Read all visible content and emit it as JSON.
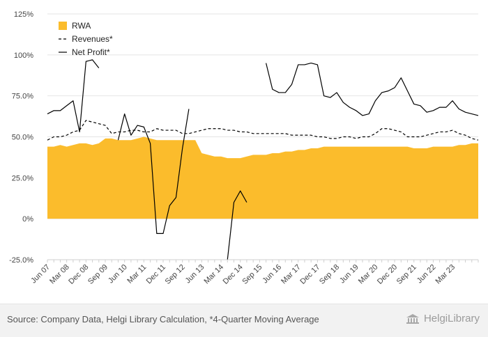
{
  "chart_data": {
    "type": "area",
    "title": "",
    "xlabel": "",
    "ylabel": "",
    "ylim": [
      -0.25,
      1.25
    ],
    "yticks": [
      -0.25,
      0,
      0.25,
      0.5,
      0.75,
      1.0,
      1.25
    ],
    "ytick_labels": [
      "-25.0%",
      "0%",
      "25.0%",
      "50.0%",
      "75.0%",
      "100%",
      "125%"
    ],
    "x_start": "Jun 07",
    "x_end": "Dec 23",
    "xtick_labels": [
      "Jun 07",
      "Mar 08",
      "Dec 08",
      "Sep 09",
      "Jun 10",
      "Mar 11",
      "Dec 11",
      "Sep 12",
      "Jun 13",
      "Mar 14",
      "Dec 14",
      "Sep 15",
      "Jun 16",
      "Mar 17",
      "Dec 17",
      "Sep 18",
      "Jun 19",
      "Mar 20",
      "Dec 20",
      "Sep 21",
      "Jun 22",
      "Mar 23"
    ],
    "grid": true,
    "legend_position": "top-left",
    "series": [
      {
        "name": "RWA",
        "style": "area",
        "color": "#fbbc2c",
        "values": [
          0.44,
          0.44,
          0.45,
          0.44,
          0.45,
          0.46,
          0.46,
          0.45,
          0.46,
          0.49,
          0.49,
          0.48,
          0.48,
          0.48,
          0.49,
          0.5,
          0.49,
          0.48,
          0.48,
          0.48,
          0.48,
          0.48,
          0.48,
          0.48,
          0.4,
          0.39,
          0.38,
          0.38,
          0.37,
          0.37,
          0.37,
          0.38,
          0.39,
          0.39,
          0.39,
          0.4,
          0.4,
          0.41,
          0.41,
          0.42,
          0.42,
          0.43,
          0.43,
          0.44,
          0.44,
          0.44,
          0.44,
          0.44,
          0.44,
          0.44,
          0.44,
          0.44,
          0.44,
          0.44,
          0.44,
          0.44,
          0.44,
          0.43,
          0.43,
          0.43,
          0.44,
          0.44,
          0.44,
          0.44,
          0.45,
          0.45,
          0.46,
          0.46
        ]
      },
      {
        "name": "Revenues*",
        "style": "dashed",
        "color": "#000000",
        "values": [
          0.48,
          0.5,
          0.5,
          0.51,
          0.53,
          0.54,
          0.6,
          0.59,
          0.58,
          0.57,
          0.52,
          0.53,
          0.53,
          0.54,
          0.54,
          0.53,
          0.53,
          0.55,
          0.54,
          0.54,
          0.54,
          0.52,
          0.52,
          0.53,
          0.54,
          0.55,
          0.55,
          0.55,
          0.54,
          0.54,
          0.53,
          0.53,
          0.52,
          0.52,
          0.52,
          0.52,
          0.52,
          0.52,
          0.51,
          0.51,
          0.51,
          0.51,
          0.5,
          0.5,
          0.49,
          0.49,
          0.5,
          0.5,
          0.49,
          0.5,
          0.5,
          0.52,
          0.55,
          0.55,
          0.54,
          0.53,
          0.5,
          0.5,
          0.5,
          0.51,
          0.52,
          0.53,
          0.53,
          0.54,
          0.52,
          0.51,
          0.49,
          0.48
        ]
      },
      {
        "name": "Net Profit*",
        "style": "solid",
        "color": "#000000",
        "values": [
          0.64,
          0.66,
          0.66,
          0.69,
          0.72,
          0.53,
          0.96,
          0.97,
          0.92,
          null,
          null,
          0.48,
          0.64,
          0.51,
          0.57,
          0.56,
          0.46,
          -0.09,
          -0.09,
          0.08,
          0.13,
          0.43,
          0.67,
          null,
          null,
          null,
          null,
          null,
          -0.25,
          0.1,
          0.17,
          0.1,
          null,
          null,
          0.95,
          0.79,
          0.77,
          0.77,
          0.82,
          0.94,
          0.94,
          0.95,
          0.94,
          0.75,
          0.74,
          0.77,
          0.71,
          0.68,
          0.66,
          0.63,
          0.64,
          0.72,
          0.77,
          0.78,
          0.8,
          0.86,
          0.78,
          0.7,
          0.69,
          0.65,
          0.66,
          0.68,
          0.68,
          0.72,
          0.67,
          0.65,
          0.64,
          0.63
        ]
      }
    ]
  },
  "legend": {
    "rwa": "RWA",
    "revenues": "Revenues*",
    "net_profit": "Net Profit*"
  },
  "footer": {
    "source": "Source: Company Data, Helgi Library Calculation, *4-Quarter Moving Average",
    "brand": "HelgiLibrary"
  },
  "colors": {
    "area": "#fbbc2c",
    "line": "#000000",
    "grid": "#e4e4e4",
    "footer_bg": "#f2f2f2"
  }
}
